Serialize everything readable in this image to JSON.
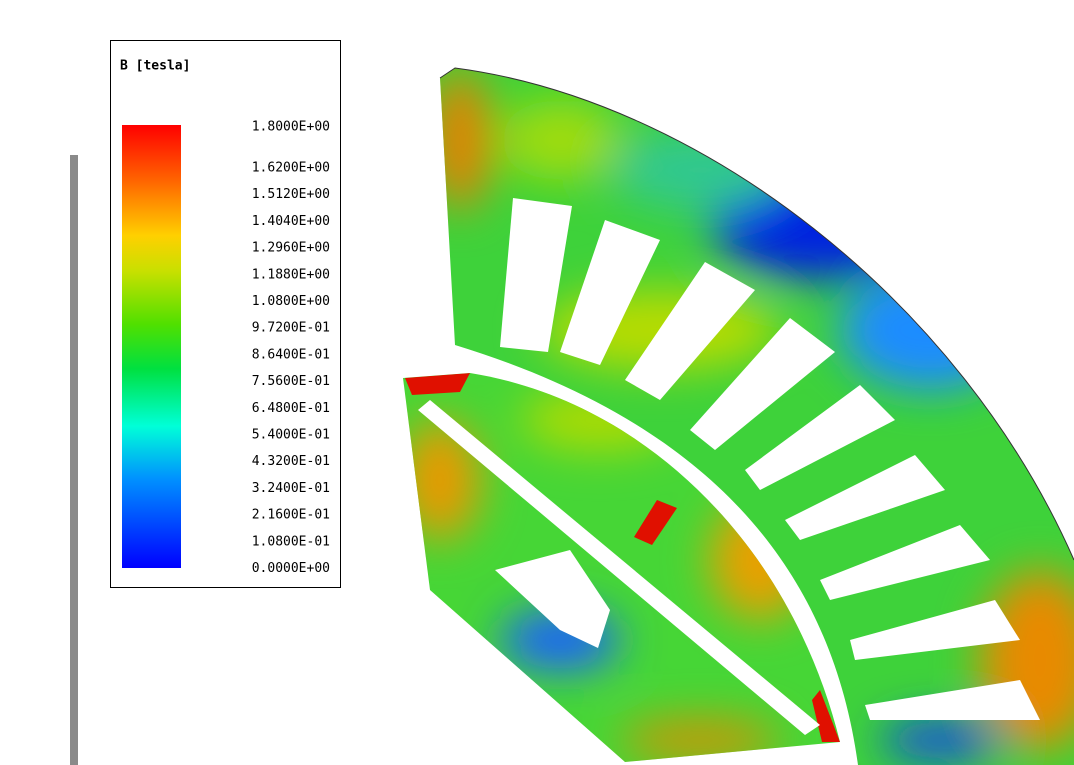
{
  "legend": {
    "title": "B [tesla]",
    "labels": [
      "1.8000E+00",
      "1.6200E+00",
      "1.5120E+00",
      "1.4040E+00",
      "1.2960E+00",
      "1.1880E+00",
      "1.0800E+00",
      "9.7200E-01",
      "8.6400E-01",
      "7.5600E-01",
      "6.4800E-01",
      "5.4000E-01",
      "4.3200E-01",
      "3.2400E-01",
      "2.1600E-01",
      "1.0800E-01",
      "0.0000E+00"
    ]
  }
}
